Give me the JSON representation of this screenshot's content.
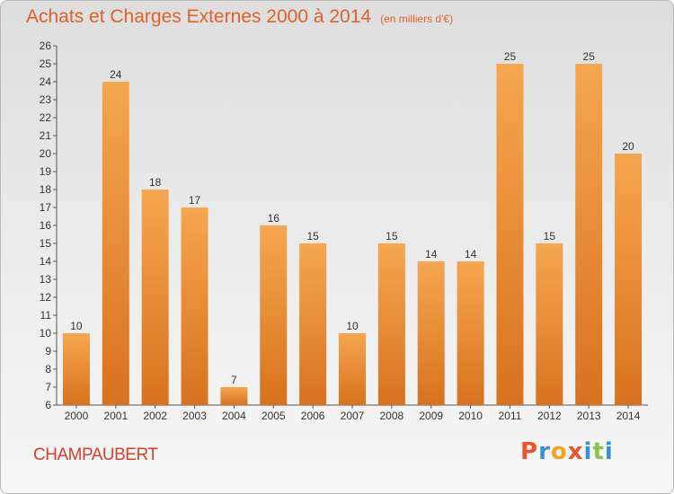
{
  "header": {
    "title": "Achats et Charges Externes 2000 à 2014",
    "unit": "(en milliers d'€)"
  },
  "footer": {
    "commune": "CHAMPAUBERT",
    "logo_text": "Proxiti"
  },
  "colors": {
    "title": "#e0622a",
    "commune": "#d6402a",
    "bar_light": "#f6a650",
    "bar_dark": "#d8721e",
    "logo_letters": [
      "#e8552a",
      "#3a8fd6",
      "#f2a51c",
      "#e8552a",
      "#3a8fd6",
      "#8bc34a",
      "#3a8fd6"
    ]
  },
  "chart_data": {
    "type": "bar",
    "title": "Achats et Charges Externes 2000 à 2014",
    "categories": [
      "2000",
      "2001",
      "2002",
      "2003",
      "2004",
      "2005",
      "2006",
      "2007",
      "2008",
      "2009",
      "2010",
      "2011",
      "2012",
      "2013",
      "2014"
    ],
    "values": [
      10,
      24,
      18,
      17,
      7,
      16,
      15,
      10,
      15,
      14,
      14,
      25,
      15,
      25,
      20
    ],
    "xlabel": "",
    "ylabel": "",
    "ylim": [
      6,
      26
    ],
    "yticks": [
      6,
      7,
      8,
      9,
      10,
      11,
      12,
      13,
      14,
      15,
      16,
      17,
      18,
      19,
      20,
      21,
      22,
      23,
      24,
      25,
      26
    ],
    "grid": false,
    "data_labels": true
  }
}
